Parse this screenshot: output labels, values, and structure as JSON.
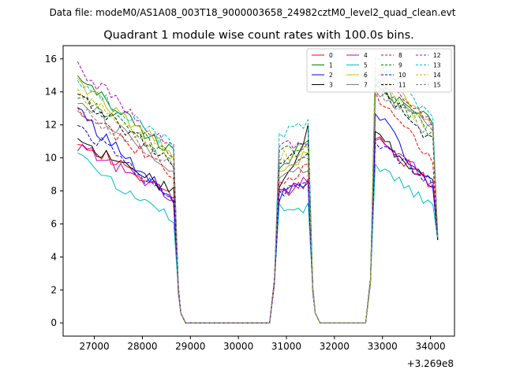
{
  "figure": {
    "suptitle": "Data file: modeM0/AS1A08_003T18_9000003658_24982cztM0_level2_quad_clean.evt"
  },
  "chart_data": {
    "type": "line",
    "title": "Quadrant 1 module wise count rates with 100.0s bins.",
    "xlabel": "",
    "ylabel": "",
    "x_offset_label": "+3.269e8",
    "xlim": [
      26350,
      34500
    ],
    "ylim": [
      -0.8,
      16.8
    ],
    "xticks": [
      27000,
      28000,
      29000,
      30000,
      31000,
      32000,
      33000,
      34000
    ],
    "xtick_labels": [
      "27000",
      "28000",
      "29000",
      "30000",
      "31000",
      "32000",
      "33000",
      "34000"
    ],
    "yticks": [
      0,
      2,
      4,
      6,
      8,
      10,
      12,
      14,
      16
    ],
    "ytick_labels": [
      "0",
      "2",
      "4",
      "6",
      "8",
      "10",
      "12",
      "14",
      "16"
    ],
    "grid": false,
    "legend_position": "top-right",
    "legend_columns": 4,
    "segments": [
      {
        "start": 26650,
        "end": 28650
      },
      {
        "start": 30850,
        "end": 31450
      },
      {
        "start": 32850,
        "end": 34050
      }
    ],
    "series": [
      {
        "name": "0",
        "color": "#ff0000",
        "dash": "solid",
        "s1": [
          11.2,
          7.5
        ],
        "s2": [
          7.8,
          8.5
        ],
        "s3": [
          11.5,
          8.2
        ]
      },
      {
        "name": "1",
        "color": "#008000",
        "dash": "solid",
        "s1": [
          14.8,
          10.2
        ],
        "s2": [
          9.5,
          11.0
        ],
        "s3": [
          14.5,
          12.2
        ]
      },
      {
        "name": "2",
        "color": "#0000ff",
        "dash": "solid",
        "s1": [
          12.8,
          7.4
        ],
        "s2": [
          7.7,
          8.6
        ],
        "s3": [
          13.0,
          7.8
        ]
      },
      {
        "name": "3",
        "color": "#000000",
        "dash": "solid",
        "s1": [
          11.0,
          8.0
        ],
        "s2": [
          8.0,
          11.7
        ],
        "s3": [
          11.4,
          8.4
        ]
      },
      {
        "name": "4",
        "color": "#bf00bf",
        "dash": "solid",
        "s1": [
          10.8,
          7.5
        ],
        "s2": [
          7.8,
          8.7
        ],
        "s3": [
          11.2,
          8.5
        ]
      },
      {
        "name": "5",
        "color": "#00bfbf",
        "dash": "solid",
        "s1": [
          10.0,
          6.2
        ],
        "s2": [
          6.9,
          7.0
        ],
        "s3": [
          9.6,
          7.2
        ]
      },
      {
        "name": "6",
        "color": "#bfbf00",
        "dash": "solid",
        "s1": [
          14.5,
          10.2
        ],
        "s2": [
          9.0,
          10.3
        ],
        "s3": [
          15.5,
          12.2
        ]
      },
      {
        "name": "7",
        "color": "#808080",
        "dash": "solid",
        "s1": [
          13.6,
          9.2
        ],
        "s2": [
          8.5,
          9.5
        ],
        "s3": [
          14.2,
          12.0
        ]
      },
      {
        "name": "8",
        "color": "#ff0000",
        "dash": "dashed",
        "s1": [
          13.0,
          9.0
        ],
        "s2": [
          8.5,
          9.4
        ],
        "s3": [
          13.8,
          9.7
        ]
      },
      {
        "name": "9",
        "color": "#008000",
        "dash": "dashed",
        "s1": [
          13.8,
          10.0
        ],
        "s2": [
          10.5,
          10.8
        ],
        "s3": [
          14.6,
          11.5
        ]
      },
      {
        "name": "10",
        "color": "#0000ff",
        "dash": "dashed",
        "s1": [
          12.0,
          7.4
        ],
        "s2": [
          7.9,
          8.3
        ],
        "s3": [
          11.0,
          8.5
        ]
      },
      {
        "name": "11",
        "color": "#000000",
        "dash": "dashed",
        "s1": [
          13.7,
          9.8
        ],
        "s2": [
          9.8,
          10.3
        ],
        "s3": [
          14.5,
          11.0
        ]
      },
      {
        "name": "12",
        "color": "#bf00bf",
        "dash": "dashed",
        "s1": [
          15.5,
          10.5
        ],
        "s2": [
          10.6,
          11.0
        ],
        "s3": [
          15.0,
          12.0
        ]
      },
      {
        "name": "13",
        "color": "#00bfbf",
        "dash": "dashed",
        "s1": [
          14.6,
          10.7
        ],
        "s2": [
          11.5,
          12.0
        ],
        "s3": [
          16.0,
          12.3
        ]
      },
      {
        "name": "14",
        "color": "#bfbf00",
        "dash": "dashed",
        "s1": [
          14.0,
          10.0
        ],
        "s2": [
          10.0,
          10.5
        ],
        "s3": [
          15.2,
          11.5
        ]
      },
      {
        "name": "15",
        "color": "#808080",
        "dash": "dashed",
        "s1": [
          13.0,
          9.5
        ],
        "s2": [
          9.6,
          10.2
        ],
        "s3": [
          14.0,
          11.5
        ]
      }
    ]
  }
}
